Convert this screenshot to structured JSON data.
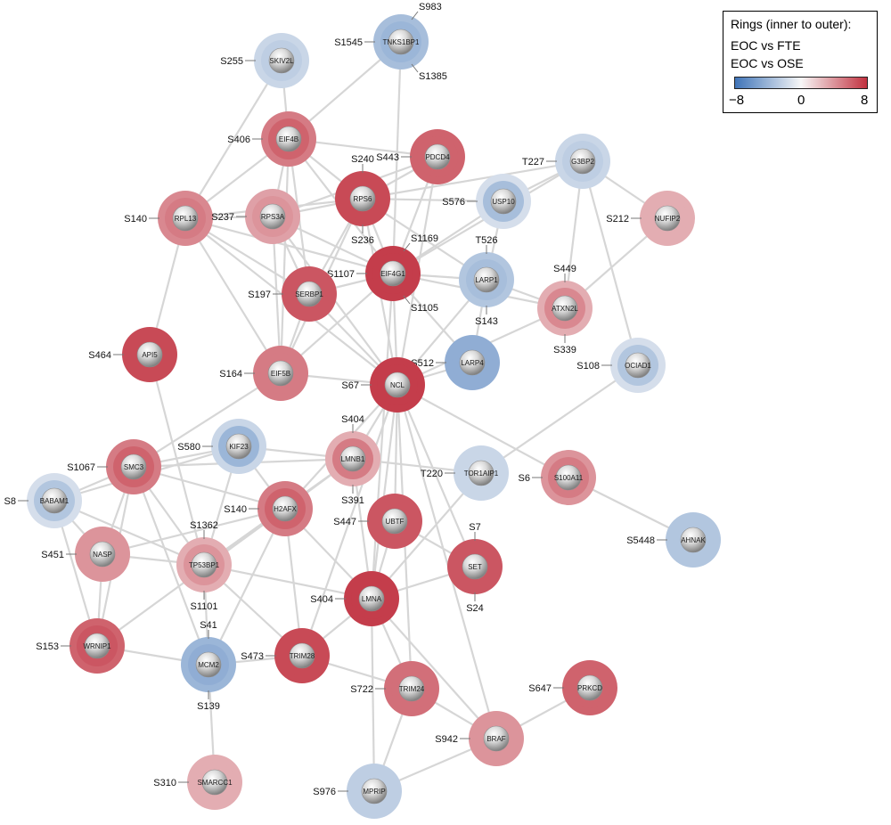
{
  "legend": {
    "title": "Rings (inner to outer):",
    "line1": "EOC vs FTE",
    "line2": "EOC vs OSE",
    "tick_min": "−8",
    "tick_mid": "0",
    "tick_max": "8",
    "range": [
      -8,
      8
    ],
    "colors": {
      "low": "#3f74b8",
      "mid": "#f7f7f7",
      "high": "#c1313f"
    }
  },
  "nodes": [
    {
      "id": "TNKS1BP1",
      "inner": -4,
      "outer": -3.5,
      "sites": [
        {
          "text": "S983",
          "dir": "ne"
        },
        {
          "text": "S1545",
          "dir": "w"
        },
        {
          "text": "S1385",
          "dir": "se"
        }
      ]
    },
    {
      "id": "SKIV2L",
      "inner": -2.5,
      "outer": -2,
      "sites": [
        {
          "text": "S255",
          "dir": "w"
        }
      ]
    },
    {
      "id": "EIF4B",
      "inner": 6,
      "outer": 5,
      "sites": [
        {
          "text": "S406",
          "dir": "w"
        }
      ]
    },
    {
      "id": "PDCD4",
      "inner": 6,
      "outer": 6,
      "sites": [
        {
          "text": "S443",
          "dir": "w"
        }
      ]
    },
    {
      "id": "G3BP2",
      "inner": -2.5,
      "outer": -2,
      "sites": [
        {
          "text": "T227",
          "dir": "w"
        }
      ]
    },
    {
      "id": "RPS6",
      "inner": 7,
      "outer": 7,
      "sites": [
        {
          "text": "S240",
          "dir": "n"
        },
        {
          "text": "S236",
          "dir": "s"
        }
      ]
    },
    {
      "id": "USP10",
      "inner": -3.5,
      "outer": -1.5,
      "sites": [
        {
          "text": "S576",
          "dir": "w"
        }
      ]
    },
    {
      "id": "RPL13",
      "inner": 5,
      "outer": 4.5,
      "sites": [
        {
          "text": "S140",
          "dir": "w"
        }
      ]
    },
    {
      "id": "RPS3A",
      "inner": 4,
      "outer": 3.5,
      "sites": [
        {
          "text": "S237",
          "dir": "w"
        }
      ]
    },
    {
      "id": "NUFIP2",
      "inner": 3,
      "outer": 3,
      "sites": [
        {
          "text": "S212",
          "dir": "w"
        }
      ]
    },
    {
      "id": "EIF4G1",
      "inner": 7.5,
      "outer": 7.5,
      "sites": [
        {
          "text": "S1169",
          "dir": "ne"
        },
        {
          "text": "S1107",
          "dir": "w"
        },
        {
          "text": "S1105",
          "dir": "se"
        }
      ]
    },
    {
      "id": "LARP1",
      "inner": -3.5,
      "outer": -3,
      "sites": [
        {
          "text": "T526",
          "dir": "n"
        },
        {
          "text": "S143",
          "dir": "s"
        }
      ]
    },
    {
      "id": "SERBP1",
      "inner": 6.5,
      "outer": 6.5,
      "sites": [
        {
          "text": "S197",
          "dir": "w"
        }
      ]
    },
    {
      "id": "ATXN2L",
      "inner": 4.5,
      "outer": 3,
      "sites": [
        {
          "text": "S449",
          "dir": "n"
        },
        {
          "text": "S339",
          "dir": "s"
        }
      ]
    },
    {
      "id": "API5",
      "inner": 7,
      "outer": 7,
      "sites": [
        {
          "text": "S464",
          "dir": "w"
        }
      ]
    },
    {
      "id": "LARP4",
      "inner": -4.5,
      "outer": -4.5,
      "sites": [
        {
          "text": "S512",
          "dir": "w"
        }
      ]
    },
    {
      "id": "OCIAD1",
      "inner": -3,
      "outer": -1.5,
      "sites": [
        {
          "text": "S108",
          "dir": "w"
        }
      ]
    },
    {
      "id": "EIF5B",
      "inner": 5,
      "outer": 5,
      "sites": [
        {
          "text": "S164",
          "dir": "w"
        }
      ]
    },
    {
      "id": "NCL",
      "inner": 7.5,
      "outer": 7.5,
      "sites": [
        {
          "text": "S67",
          "dir": "w"
        }
      ]
    },
    {
      "id": "KIF23",
      "inner": -4,
      "outer": -2,
      "sites": [
        {
          "text": "S580",
          "dir": "w"
        }
      ]
    },
    {
      "id": "LMNB1",
      "inner": 5,
      "outer": 3,
      "sites": [
        {
          "text": "S404",
          "dir": "n"
        },
        {
          "text": "S391",
          "dir": "s"
        }
      ]
    },
    {
      "id": "SMC3",
      "inner": 6,
      "outer": 5,
      "sites": [
        {
          "text": "S1067",
          "dir": "w"
        }
      ]
    },
    {
      "id": "TOR1AIP1",
      "inner": -2,
      "outer": -2,
      "sites": [
        {
          "text": "T220",
          "dir": "w"
        }
      ]
    },
    {
      "id": "S100A11",
      "inner": 5,
      "outer": 4,
      "sites": [
        {
          "text": "S6",
          "dir": "w"
        }
      ]
    },
    {
      "id": "BABAM1",
      "inner": -3,
      "outer": -1.5,
      "sites": [
        {
          "text": "S8",
          "dir": "w"
        }
      ]
    },
    {
      "id": "H2AFX",
      "inner": 6,
      "outer": 5,
      "sites": [
        {
          "text": "S140",
          "dir": "w"
        }
      ]
    },
    {
      "id": "UBTF",
      "inner": 6.5,
      "outer": 6.5,
      "sites": [
        {
          "text": "S447",
          "dir": "w"
        }
      ]
    },
    {
      "id": "NASP",
      "inner": 4,
      "outer": 4,
      "sites": [
        {
          "text": "S451",
          "dir": "w"
        }
      ]
    },
    {
      "id": "TP53BP1",
      "inner": 4,
      "outer": 3,
      "sites": [
        {
          "text": "S1362",
          "dir": "n"
        },
        {
          "text": "S1101",
          "dir": "s"
        }
      ]
    },
    {
      "id": "SET",
      "inner": 6.5,
      "outer": 6.5,
      "sites": [
        {
          "text": "S7",
          "dir": "n"
        },
        {
          "text": "S24",
          "dir": "s"
        }
      ]
    },
    {
      "id": "AHNAK",
      "inner": -3,
      "outer": -3,
      "sites": [
        {
          "text": "S5448",
          "dir": "w"
        }
      ]
    },
    {
      "id": "LMNA",
      "inner": 7.5,
      "outer": 7.5,
      "sites": [
        {
          "text": "S404",
          "dir": "w"
        }
      ]
    },
    {
      "id": "WRNIP1",
      "inner": 6.5,
      "outer": 6,
      "sites": [
        {
          "text": "S153",
          "dir": "w"
        }
      ]
    },
    {
      "id": "MCM2",
      "inner": -4.5,
      "outer": -4,
      "sites": [
        {
          "text": "S41",
          "dir": "n"
        },
        {
          "text": "S139",
          "dir": "s"
        }
      ]
    },
    {
      "id": "TRIM28",
      "inner": 7,
      "outer": 7,
      "sites": [
        {
          "text": "S473",
          "dir": "w"
        }
      ]
    },
    {
      "id": "TRIM24",
      "inner": 5.5,
      "outer": 5.5,
      "sites": [
        {
          "text": "S722",
          "dir": "w"
        }
      ]
    },
    {
      "id": "PRKCD",
      "inner": 6,
      "outer": 6,
      "sites": [
        {
          "text": "S647",
          "dir": "w"
        }
      ]
    },
    {
      "id": "BRAF",
      "inner": 4,
      "outer": 4,
      "sites": [
        {
          "text": "S942",
          "dir": "w"
        }
      ]
    },
    {
      "id": "SMARCC1",
      "inner": 3,
      "outer": 3,
      "sites": [
        {
          "text": "S310",
          "dir": "w"
        }
      ]
    },
    {
      "id": "MPRIP",
      "inner": -2.5,
      "outer": -2.5,
      "sites": [
        {
          "text": "S976",
          "dir": "w"
        }
      ]
    }
  ],
  "edges": [
    [
      "TNKS1BP1",
      "EIF4B"
    ],
    [
      "TNKS1BP1",
      "EIF4G1"
    ],
    [
      "SKIV2L",
      "EIF4B"
    ],
    [
      "SKIV2L",
      "RPL13"
    ],
    [
      "EIF4B",
      "RPS6"
    ],
    [
      "EIF4B",
      "RPS3A"
    ],
    [
      "EIF4B",
      "RPL13"
    ],
    [
      "EIF4B",
      "PDCD4"
    ],
    [
      "EIF4B",
      "SERBP1"
    ],
    [
      "EIF4B",
      "EIF4G1"
    ],
    [
      "EIF4B",
      "EIF5B"
    ],
    [
      "PDCD4",
      "RPS6"
    ],
    [
      "PDCD4",
      "EIF4G1"
    ],
    [
      "PDCD4",
      "RPS3A"
    ],
    [
      "PDCD4",
      "NCL"
    ],
    [
      "G3BP2",
      "USP10"
    ],
    [
      "G3BP2",
      "RPS6"
    ],
    [
      "G3BP2",
      "ATXN2L"
    ],
    [
      "G3BP2",
      "EIF4G1"
    ],
    [
      "G3BP2",
      "OCIAD1"
    ],
    [
      "G3BP2",
      "NUFIP2"
    ],
    [
      "RPS6",
      "RPL13"
    ],
    [
      "RPS6",
      "RPS3A"
    ],
    [
      "RPS6",
      "EIF4G1"
    ],
    [
      "RPS6",
      "SERBP1"
    ],
    [
      "RPS6",
      "NCL"
    ],
    [
      "RPS6",
      "LARP1"
    ],
    [
      "RPS6",
      "USP10"
    ],
    [
      "RPS6",
      "EIF5B"
    ],
    [
      "RPL13",
      "RPS3A"
    ],
    [
      "RPL13",
      "SERBP1"
    ],
    [
      "RPL13",
      "EIF5B"
    ],
    [
      "RPL13",
      "API5"
    ],
    [
      "RPL13",
      "EIF4G1"
    ],
    [
      "RPL13",
      "NCL"
    ],
    [
      "RPS3A",
      "SERBP1"
    ],
    [
      "RPS3A",
      "EIF4G1"
    ],
    [
      "RPS3A",
      "EIF5B"
    ],
    [
      "RPS3A",
      "NCL"
    ],
    [
      "NUFIP2",
      "ATXN2L"
    ],
    [
      "EIF4G1",
      "LARP1"
    ],
    [
      "EIF4G1",
      "SERBP1"
    ],
    [
      "EIF4G1",
      "NCL"
    ],
    [
      "EIF4G1",
      "EIF5B"
    ],
    [
      "EIF4G1",
      "ATXN2L"
    ],
    [
      "EIF4G1",
      "USP10"
    ],
    [
      "EIF4G1",
      "LARP4"
    ],
    [
      "EIF4G1",
      "LMNA"
    ],
    [
      "LARP1",
      "ATXN2L"
    ],
    [
      "LARP1",
      "USP10"
    ],
    [
      "LARP1",
      "LARP4"
    ],
    [
      "LARP1",
      "NCL"
    ],
    [
      "SERBP1",
      "EIF5B"
    ],
    [
      "SERBP1",
      "NCL"
    ],
    [
      "ATXN2L",
      "NCL"
    ],
    [
      "LARP4",
      "NCL"
    ],
    [
      "API5",
      "TP53BP1"
    ],
    [
      "EIF5B",
      "NCL"
    ],
    [
      "EIF5B",
      "SMC3"
    ],
    [
      "NCL",
      "LMNB1"
    ],
    [
      "NCL",
      "H2AFX"
    ],
    [
      "NCL",
      "UBTF"
    ],
    [
      "NCL",
      "SET"
    ],
    [
      "NCL",
      "LMNA"
    ],
    [
      "NCL",
      "TRIM28"
    ],
    [
      "NCL",
      "TRIM24"
    ],
    [
      "NCL",
      "BRAF"
    ],
    [
      "NCL",
      "S100A11"
    ],
    [
      "KIF23",
      "LMNB1"
    ],
    [
      "KIF23",
      "TP53BP1"
    ],
    [
      "KIF23",
      "H2AFX"
    ],
    [
      "KIF23",
      "BABAM1"
    ],
    [
      "KIF23",
      "SMC3"
    ],
    [
      "LMNB1",
      "LMNA"
    ],
    [
      "LMNB1",
      "H2AFX"
    ],
    [
      "LMNB1",
      "SMC3"
    ],
    [
      "LMNB1",
      "TOR1AIP1"
    ],
    [
      "LMNB1",
      "TP53BP1"
    ],
    [
      "SMC3",
      "TP53BP1"
    ],
    [
      "SMC3",
      "H2AFX"
    ],
    [
      "SMC3",
      "NASP"
    ],
    [
      "SMC3",
      "MCM2"
    ],
    [
      "SMC3",
      "BABAM1"
    ],
    [
      "SMC3",
      "WRNIP1"
    ],
    [
      "TOR1AIP1",
      "LMNA"
    ],
    [
      "TOR1AIP1",
      "OCIAD1"
    ],
    [
      "S100A11",
      "AHNAK"
    ],
    [
      "BABAM1",
      "TP53BP1"
    ],
    [
      "BABAM1",
      "NASP"
    ],
    [
      "BABAM1",
      "WRNIP1"
    ],
    [
      "H2AFX",
      "TP53BP1"
    ],
    [
      "H2AFX",
      "MCM2"
    ],
    [
      "H2AFX",
      "TRIM28"
    ],
    [
      "H2AFX",
      "LMNA"
    ],
    [
      "H2AFX",
      "NASP"
    ],
    [
      "H2AFX",
      "WRNIP1"
    ],
    [
      "UBTF",
      "LMNA"
    ],
    [
      "UBTF",
      "SET"
    ],
    [
      "NASP",
      "TP53BP1"
    ],
    [
      "NASP",
      "WRNIP1"
    ],
    [
      "TP53BP1",
      "LMNA"
    ],
    [
      "TP53BP1",
      "MCM2"
    ],
    [
      "TP53BP1",
      "TRIM28"
    ],
    [
      "SET",
      "LMNA"
    ],
    [
      "LMNA",
      "TRIM28"
    ],
    [
      "LMNA",
      "TRIM24"
    ],
    [
      "LMNA",
      "BRAF"
    ],
    [
      "LMNA",
      "MPRIP"
    ],
    [
      "WRNIP1",
      "MCM2"
    ],
    [
      "MCM2",
      "SMARCC1"
    ],
    [
      "MCM2",
      "TRIM28"
    ],
    [
      "TRIM28",
      "TRIM24"
    ],
    [
      "TRIM24",
      "BRAF"
    ],
    [
      "TRIM24",
      "MPRIP"
    ],
    [
      "BRAF",
      "PRKCD"
    ],
    [
      "BRAF",
      "MPRIP"
    ]
  ]
}
